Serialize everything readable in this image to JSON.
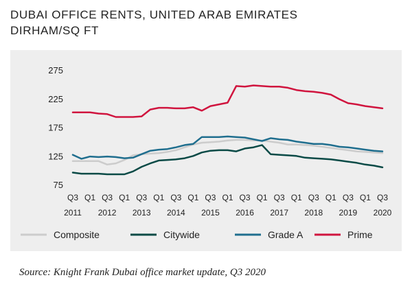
{
  "header": {
    "title_line1": "DUBAI OFFICE RENTS, UNITED ARAB EMIRATES",
    "title_line2": "DIRHAM/SQ FT"
  },
  "footer": {
    "source": "Source: Knight Frank Dubai office market update, Q3 2020"
  },
  "chart_data": {
    "type": "line",
    "title": "DUBAI OFFICE RENTS, UNITED ARAB EMIRATES DIRHAM/SQ FT",
    "ylabel": "Dirham/sq ft",
    "xlabel": "",
    "ylim": [
      75,
      275
    ],
    "yticks": [
      75,
      125,
      175,
      225,
      275
    ],
    "grid": false,
    "legend_position": "bottom",
    "x": [
      "Q3 2011",
      "Q4 2011",
      "Q1 2012",
      "Q2 2012",
      "Q3 2012",
      "Q4 2012",
      "Q1 2013",
      "Q2 2013",
      "Q3 2013",
      "Q4 2013",
      "Q1 2014",
      "Q2 2014",
      "Q3 2014",
      "Q4 2014",
      "Q1 2015",
      "Q2 2015",
      "Q3 2015",
      "Q4 2015",
      "Q1 2016",
      "Q2 2016",
      "Q3 2016",
      "Q4 2016",
      "Q1 2017",
      "Q2 2017",
      "Q3 2017",
      "Q4 2017",
      "Q1 2018",
      "Q2 2018",
      "Q3 2018",
      "Q4 2018",
      "Q1 2019",
      "Q2 2019",
      "Q3 2019",
      "Q4 2019",
      "Q1 2020",
      "Q2 2020",
      "Q3 2020"
    ],
    "tick_labels": [
      {
        "x": "Q3 2011",
        "q": "Q3",
        "year": "2011"
      },
      {
        "x": "Q1 2012",
        "q": "Q1",
        "year": ""
      },
      {
        "x": "Q3 2012",
        "q": "Q3",
        "year": "2012"
      },
      {
        "x": "Q1 2013",
        "q": "Q1",
        "year": ""
      },
      {
        "x": "Q3 2013",
        "q": "Q3",
        "year": "2013"
      },
      {
        "x": "Q1 2014",
        "q": "Q1",
        "year": ""
      },
      {
        "x": "Q3 2014",
        "q": "Q3",
        "year": "2014"
      },
      {
        "x": "Q1 2015",
        "q": "Q1",
        "year": ""
      },
      {
        "x": "Q3 2015",
        "q": "Q3",
        "year": "2015"
      },
      {
        "x": "Q1 2016",
        "q": "Q1",
        "year": ""
      },
      {
        "x": "Q3 2016",
        "q": "Q3",
        "year": "2016"
      },
      {
        "x": "Q1 2017",
        "q": "Q1",
        "year": ""
      },
      {
        "x": "Q3 2017",
        "q": "Q3",
        "year": "2017"
      },
      {
        "x": "Q1 2018",
        "q": "Q1",
        "year": ""
      },
      {
        "x": "Q3 2018",
        "q": "Q3",
        "year": "2018"
      },
      {
        "x": "Q1 2019",
        "q": "Q1",
        "year": ""
      },
      {
        "x": "Q3 2019",
        "q": "Q3",
        "year": "2019"
      },
      {
        "x": "Q1 2020",
        "q": "Q1",
        "year": ""
      },
      {
        "x": "Q3 2020",
        "q": "Q3",
        "year": "2020"
      }
    ],
    "series": [
      {
        "name": "Composite",
        "color": "#cccccc",
        "values": [
          116,
          116,
          116,
          116,
          110,
          112,
          118,
          126,
          128,
          129,
          130,
          132,
          135,
          140,
          145,
          148,
          149,
          150,
          152,
          153,
          153,
          152,
          152,
          150,
          148,
          145,
          145,
          144,
          143,
          141,
          139,
          137,
          135,
          133,
          132,
          131,
          130
        ]
      },
      {
        "name": "Citywide",
        "color": "#0a4a46",
        "values": [
          96,
          94,
          94,
          94,
          93,
          93,
          93,
          98,
          106,
          112,
          117,
          118,
          119,
          121,
          125,
          131,
          134,
          135,
          135,
          133,
          138,
          140,
          144,
          128,
          127,
          126,
          125,
          122,
          121,
          120,
          119,
          117,
          115,
          113,
          110,
          108,
          105
        ]
      },
      {
        "name": "Grade A",
        "color": "#1f6e8e",
        "values": [
          127,
          120,
          124,
          123,
          124,
          123,
          121,
          122,
          128,
          134,
          136,
          137,
          140,
          144,
          146,
          158,
          158,
          158,
          159,
          158,
          157,
          154,
          151,
          156,
          154,
          153,
          150,
          148,
          146,
          146,
          144,
          141,
          140,
          138,
          136,
          134,
          133
        ]
      },
      {
        "name": "Prime",
        "color": "#d0143e",
        "values": [
          201,
          201,
          201,
          199,
          198,
          193,
          193,
          193,
          194,
          206,
          209,
          209,
          208,
          208,
          210,
          204,
          212,
          215,
          218,
          247,
          246,
          248,
          247,
          246,
          246,
          244,
          240,
          238,
          237,
          235,
          232,
          224,
          217,
          215,
          212,
          210,
          208
        ]
      }
    ]
  }
}
